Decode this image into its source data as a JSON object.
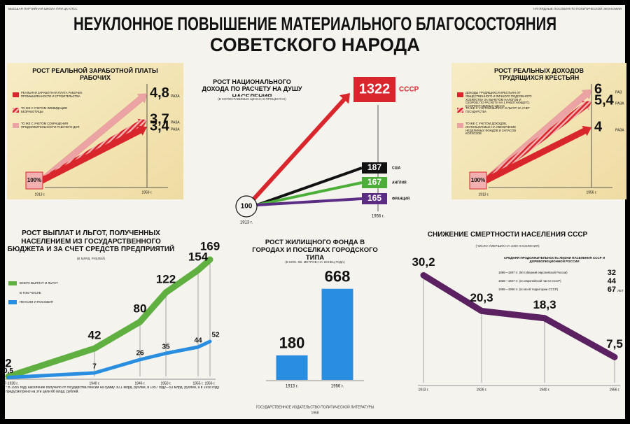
{
  "header": {
    "left": "ВЫСШАЯ ПАРТИЙНАЯ ШКОЛА ПРИ ЦК КПСС",
    "right": "НАГЛЯДНЫЕ ПОСОБИЯ ПО ПОЛИТИЧЕСКОЙ ЭКОНОМИИ"
  },
  "title": [
    "НЕУКЛОННОЕ ПОВЫШЕНИЕ МАТЕРИАЛЬНОГО БЛАГОСОСТОЯНИЯ",
    "СОВЕТСКОГО НАРОДА"
  ],
  "publisher": "ГОСУДАРСТВЕННОЕ ИЗДАТЕЛЬСТВО ПОЛИТИЧЕСКОЙ ЛИТЕРАТУРЫ",
  "year": "1958",
  "chart_data": [
    {
      "type": "arrow",
      "title": "РОСТ РЕАЛЬНОЙ ЗАРАБОТНОЙ ПЛАТЫ РАБОЧИХ",
      "base_label": "100%",
      "x": [
        "1913 г.",
        "1956 г."
      ],
      "series": [
        {
          "name": "РЕАЛЬНАЯ ЗАРАБОТНАЯ ПЛАТА РАБОЧИХ ПРОМЫШЛЕННОСТИ И СТРОИТЕЛЬСТВА",
          "color": "#d8262c",
          "value": 3.4,
          "value_label": "3,4",
          "unit": "РАЗА"
        },
        {
          "name": "ТО ЖЕ С УЧЕТОМ ЛИКВИДАЦИИ БЕЗРАБОТИЦЫ",
          "color": "hatch",
          "value": 3.7,
          "value_label": "3,7",
          "unit": "РАЗА"
        },
        {
          "name": "ТО ЖЕ С УЧЕТОМ СОКРАЩЕНИЯ ПРОДОЛЖИТЕЛЬНОСТИ РАБОЧЕГО ДНЯ",
          "color": "#eba3a3",
          "value": 4.8,
          "value_label": "4,8",
          "unit": "РАЗА"
        }
      ]
    },
    {
      "type": "arrow_compare",
      "title": "РОСТ НАЦИОНАЛЬНОГО ДОХОДА ПО РАСЧЕТУ НА ДУШУ НАСЕЛЕНИЯ",
      "subtitle": "(В СОПОСТАВИМЫХ ЦЕНАХ; В ПРОЦЕНТАХ)",
      "base": 100,
      "x": [
        "1913 г.",
        "1956 г."
      ],
      "series": [
        {
          "name": "СССР",
          "color": "#d8262c",
          "value": 1322
        },
        {
          "name": "США",
          "color": "#111111",
          "value": 187
        },
        {
          "name": "АНГЛИЯ",
          "color": "#4caf3a",
          "value": 167
        },
        {
          "name": "ФРАНЦИЯ",
          "color": "#5b2c83",
          "value": 165
        }
      ]
    },
    {
      "type": "arrow",
      "title": "РОСТ РЕАЛЬНЫХ ДОХОДОВ ТРУДЯЩИХСЯ КРЕСТЬЯН",
      "base_label": "100%",
      "x": [
        "1913 г.",
        "1956 г."
      ],
      "series": [
        {
          "name": "ДОХОДЫ ТРУДЯЩИХСЯ КРЕСТЬЯН ОТ ОБЩЕСТВЕННОГО И ЛИЧНОГО ПОДСОБНОГО ХОЗЯЙСТВА ЗА ВЫЧЕТОМ НАЛОГОВ И СБОРОВ; ПО РАСЧЕТУ НА 1 РАБОТАЮЩЕГО, В СОПОСТАВИМЫХ ЦЕНАХ",
          "color": "#d8262c",
          "value": 4,
          "unit": "РАЗА"
        },
        {
          "name": "ТО ЖЕ С УЧЕТОМ ВЫПЛАТ И ЛЬГОТ ЗА СЧЕТ ГОСУДАРСТВА",
          "color": "hatch",
          "value": 5.4,
          "value_label": "5,4",
          "unit": "РАЗА"
        },
        {
          "name": "ТО ЖЕ С УЧЕТОМ ДОХОДОВ, ИСПОЛЬЗУЕМЫХ НА УВЕЛИЧЕНИЕ НЕДЕЛИМЫХ ФОНДОВ И ЗАПАСОВ КОЛХОЗОВ",
          "color": "#eba3a3",
          "value": 6,
          "unit": "РАЗ"
        }
      ]
    },
    {
      "type": "line",
      "title": "РОСТ ВЫПЛАТ И ЛЬГОТ, ПОЛУЧЕННЫХ НАСЕЛЕНИЕМ ИЗ ГОСУДАРСТВЕННОГО БЮДЖЕТА И ЗА СЧЕТ СРЕДСТВ ПРЕДПРИЯТИЙ",
      "subtitle": "(В МЛРД. РУБЛЕЙ)",
      "note": "В ТОМ ЧИСЛЕ",
      "categories": [
        "1927-1928 г.",
        "1940 г.",
        "1946 г.",
        "1950 г.",
        "1955 г.",
        "1956 г."
      ],
      "series": [
        {
          "name": "ВСЕГО ВЫПЛАТ И ЛЬГОТ",
          "color": "#5fb040",
          "values": [
            2,
            42,
            80,
            122,
            154,
            169
          ]
        },
        {
          "name": "ПЕНСИИ И ПОСОБИЯ",
          "color": "#2a8ee0",
          "values": [
            0.5,
            7,
            26,
            35,
            44,
            52
          ],
          "value_labels": [
            "0,5",
            "7",
            "26",
            "35",
            "44",
            "52"
          ]
        }
      ],
      "footnote": "* В 1955 году население получило от государства пенсий на сумму 30,1 млрд. рублей, в 1957 году—53 млрд. рублей, а в 1958 году предусмотрено на эти цели 66 млрд. рублей."
    },
    {
      "type": "bar",
      "title": "РОСТ ЖИЛИЩНОГО ФОНДА В ГОРОДАХ И ПОСЕЛКАХ ГОРОДСКОГО ТИПА",
      "subtitle": "(В МЛН. КВ. МЕТРОВ; НА КОНЕЦ ГОДА)",
      "categories": [
        "1913 г.",
        "1956 г."
      ],
      "values": [
        180,
        668
      ],
      "color": "#2a8ee0"
    },
    {
      "type": "line",
      "title": "СНИЖЕНИЕ СМЕРТНОСТИ НАСЕЛЕНИЯ СССР",
      "subtitle": "(ЧИСЛО УМЕРШИХ НА 1000 НАСЕЛЕНИЯ)",
      "categories": [
        "1913 г.",
        "1926 г.",
        "1940 г.",
        "1956 г."
      ],
      "series": [
        {
          "color": "#5b2160",
          "values": [
            30.2,
            20.3,
            18.3,
            7.5
          ],
          "value_labels": [
            "30,2",
            "20,3",
            "18,3",
            "7,5"
          ]
        }
      ],
      "life_expectancy": {
        "title": "СРЕДНЯЯ ПРОДОЛЖИТЕЛЬНОСТЬ ЖИЗНИ НАСЕЛЕНИЯ СССР И ДОРЕВОЛЮЦИОННОЙ РОССИИ",
        "unit": "ЛЕТ",
        "rows": [
          {
            "label": "1896—1897 гг. (50 губерний европейской России)",
            "value": 32
          },
          {
            "label": "1926—1927 гг. (по европейской части СССР)",
            "value": 44
          },
          {
            "label": "1955—1956 гг. (по всей территории СССР)",
            "value": 67
          }
        ]
      }
    }
  ]
}
